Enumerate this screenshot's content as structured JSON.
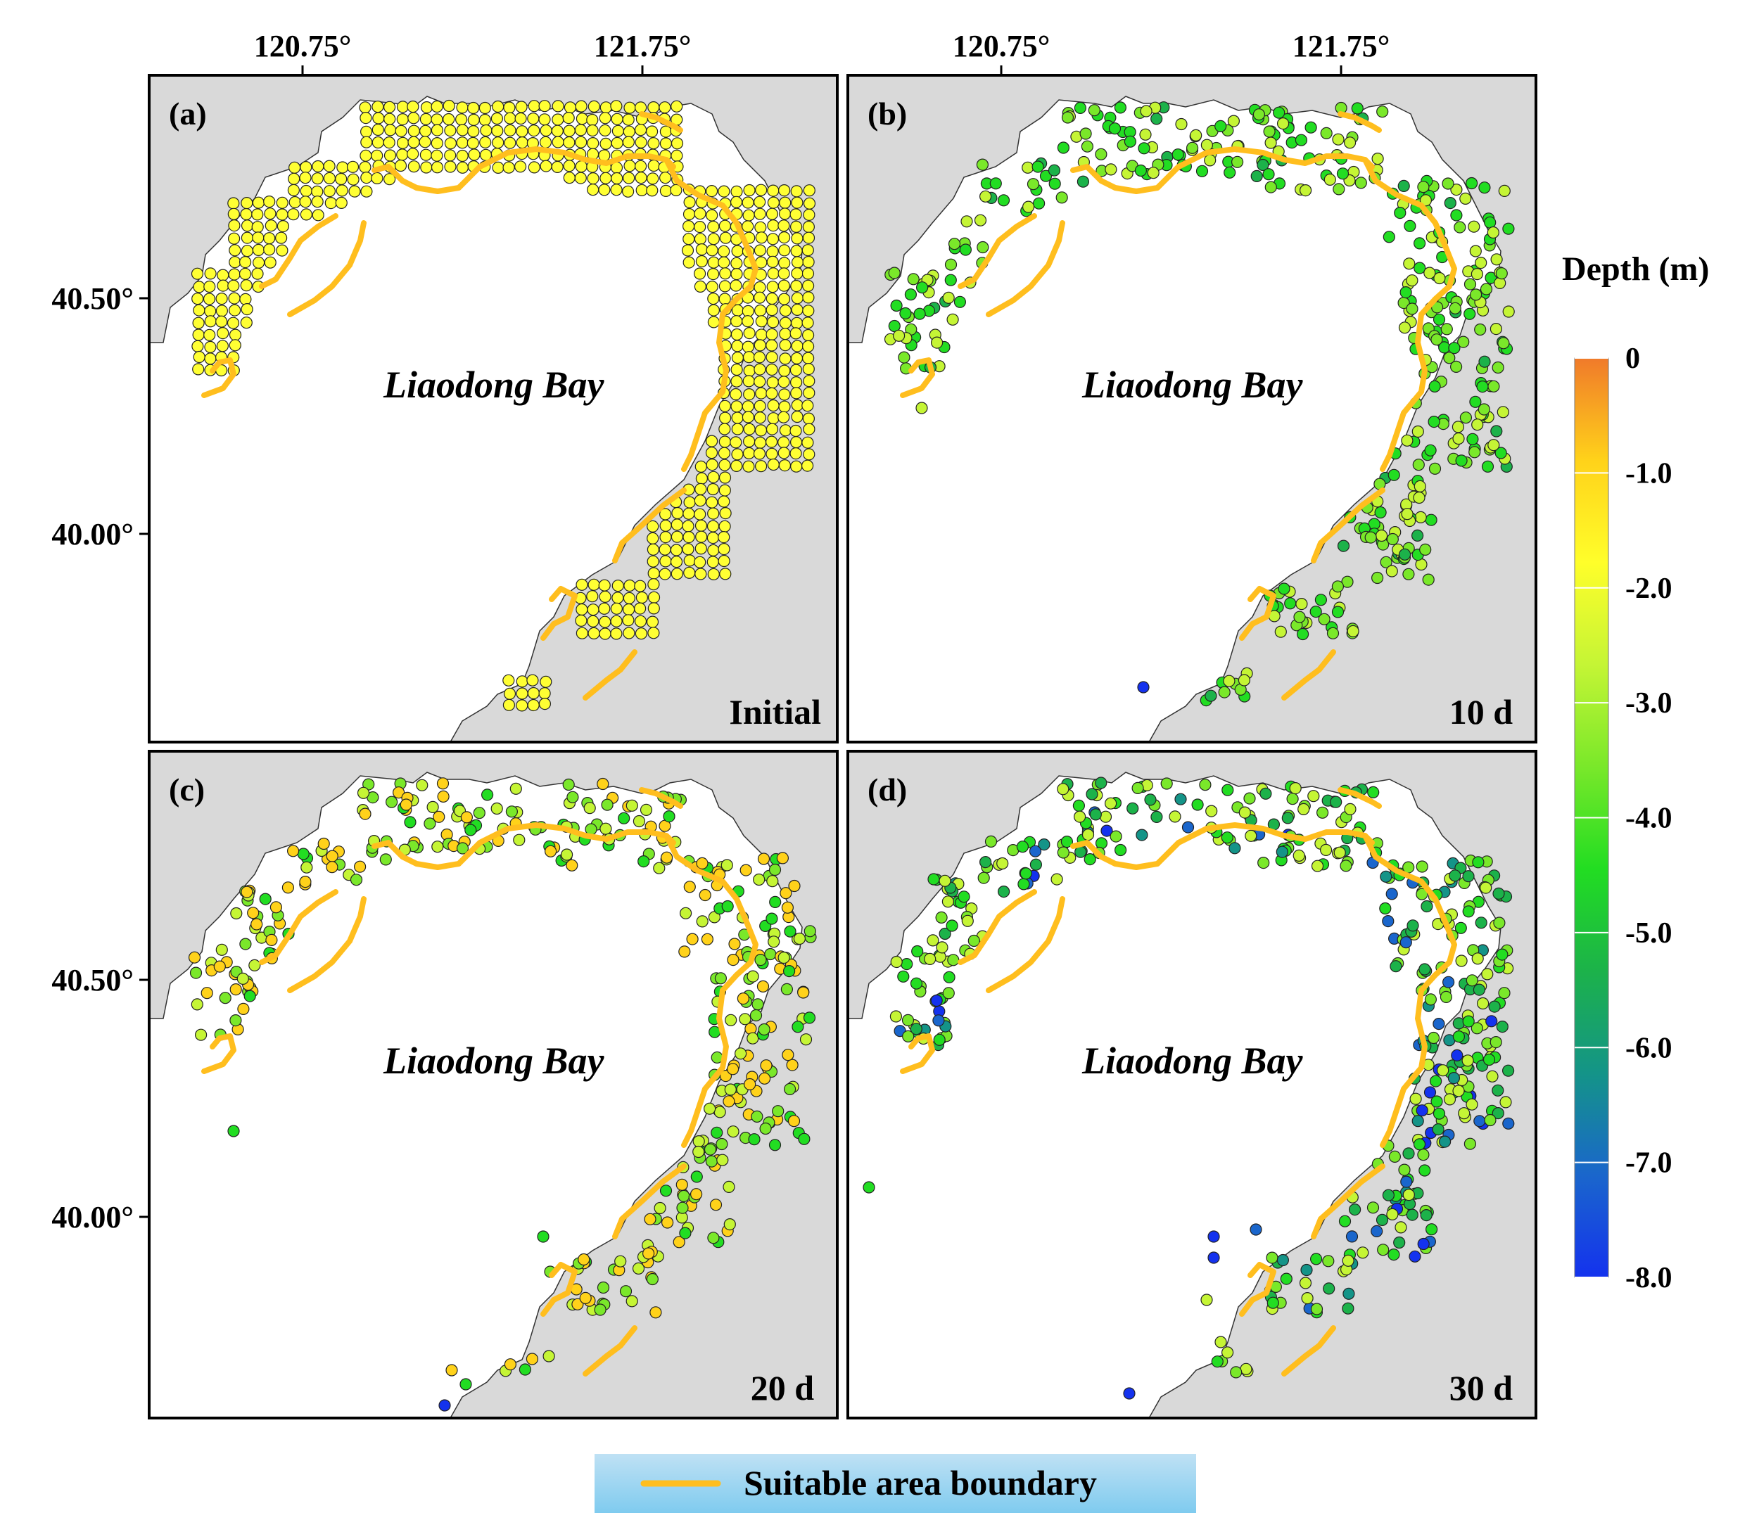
{
  "axes": {
    "x_ticks": [
      "120.75°",
      "121.75°"
    ],
    "y_ticks": [
      "40.50°",
      "40.00°"
    ]
  },
  "panels": [
    {
      "id": "a",
      "label": "(a)",
      "corner": "Initial",
      "bay_label": "Liaodong Bay"
    },
    {
      "id": "b",
      "label": "(b)",
      "corner": "10 d",
      "bay_label": "Liaodong Bay"
    },
    {
      "id": "c",
      "label": "(c)",
      "corner": "20 d",
      "bay_label": "Liaodong Bay"
    },
    {
      "id": "d",
      "label": "(d)",
      "corner": "30 d",
      "bay_label": "Liaodong Bay"
    }
  ],
  "colorbar": {
    "title": "Depth (m)",
    "ticks": [
      "0",
      "-1.0",
      "-2.0",
      "-3.0",
      "-4.0",
      "-5.0",
      "-6.0",
      "-7.0",
      "-8.0"
    ],
    "colors": [
      "#f07a2a",
      "#ffd21a",
      "#fffe2a",
      "#c5f535",
      "#7ae82a",
      "#22dd22",
      "#1cb24a",
      "#149488",
      "#1a66cc",
      "#1432ee"
    ]
  },
  "legend": {
    "label": "Suitable area boundary",
    "line_color": "#ffbe1e",
    "bg_top": "#bfe1f4",
    "bg_bottom": "#7fcbef"
  },
  "colors": {
    "land": "#d9d9d9",
    "sea": "#ffffff",
    "boundary": "#ffbe1e"
  }
}
